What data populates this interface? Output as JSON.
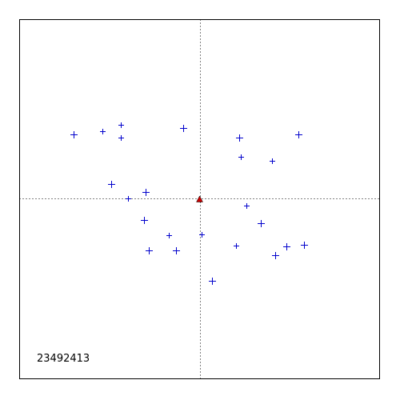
{
  "chart_data": {
    "type": "scatter",
    "title": "",
    "xlabel": "",
    "ylabel": "",
    "xlim": [
      -1,
      1
    ],
    "ylim": [
      -1,
      1
    ],
    "grid": false,
    "crosshair": true,
    "annotation": "23492413",
    "origin_marker": {
      "x": 0,
      "y": 0,
      "shape": "triangle",
      "color": "#cc0000"
    },
    "series": [
      {
        "marker": "plus",
        "color": "#0000cc",
        "points": [
          {
            "x": -0.702,
            "y": 0.36,
            "size": "large"
          },
          {
            "x": -0.538,
            "y": 0.378,
            "size": "small"
          },
          {
            "x": -0.436,
            "y": 0.413,
            "size": "small"
          },
          {
            "x": -0.436,
            "y": 0.342,
            "size": "small"
          },
          {
            "x": -0.089,
            "y": 0.396,
            "size": "large"
          },
          {
            "x": 0.218,
            "y": 0.342,
            "size": "large"
          },
          {
            "x": 0.547,
            "y": 0.36,
            "size": "large"
          },
          {
            "x": 0.227,
            "y": 0.236,
            "size": "small"
          },
          {
            "x": 0.404,
            "y": 0.213,
            "size": "small"
          },
          {
            "x": -0.493,
            "y": 0.084,
            "size": "large"
          },
          {
            "x": -0.396,
            "y": 0.004,
            "size": "small"
          },
          {
            "x": -0.302,
            "y": 0.04,
            "size": "large"
          },
          {
            "x": 0.258,
            "y": -0.036,
            "size": "small"
          },
          {
            "x": -0.311,
            "y": -0.116,
            "size": "large"
          },
          {
            "x": 0.342,
            "y": -0.133,
            "size": "large"
          },
          {
            "x": -0.169,
            "y": -0.2,
            "size": "small"
          },
          {
            "x": 0.013,
            "y": -0.196,
            "size": "small"
          },
          {
            "x": -0.282,
            "y": -0.284,
            "size": "large"
          },
          {
            "x": -0.133,
            "y": -0.287,
            "size": "large"
          },
          {
            "x": 0.204,
            "y": -0.258,
            "size": "small"
          },
          {
            "x": 0.48,
            "y": -0.262,
            "size": "large"
          },
          {
            "x": 0.58,
            "y": -0.253,
            "size": "large"
          },
          {
            "x": 0.422,
            "y": -0.311,
            "size": "large"
          },
          {
            "x": 0.071,
            "y": -0.453,
            "size": "large"
          }
        ]
      }
    ]
  }
}
